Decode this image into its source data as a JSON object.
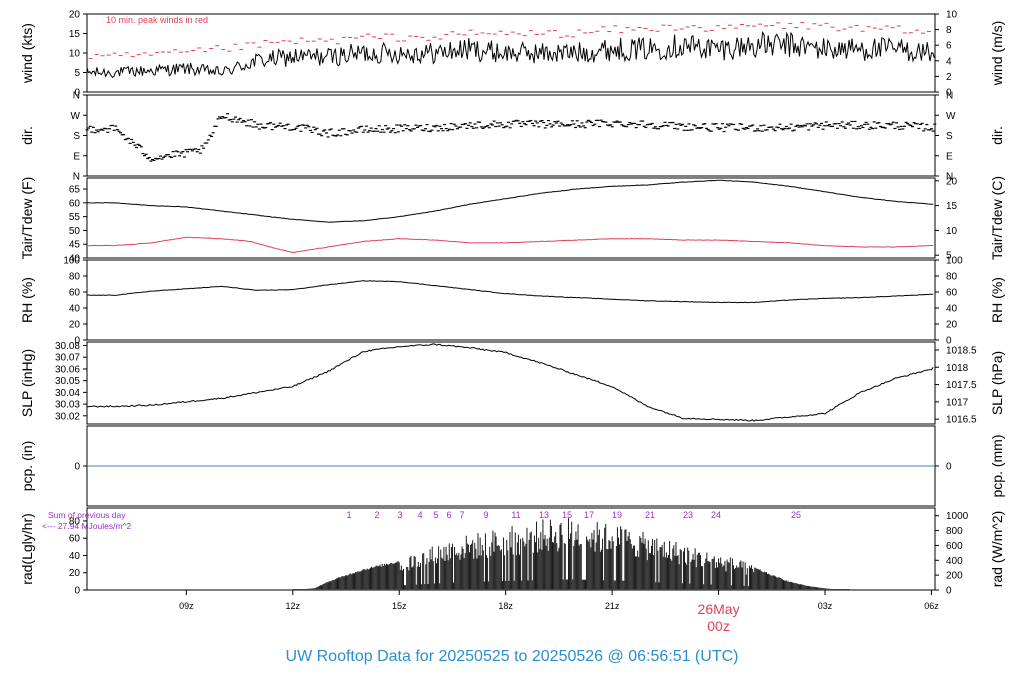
{
  "page_title": "UW Rooftop Data for 20250525  to  20250526 @ 06:56:51  (UTC)",
  "colors": {
    "main": "#000000",
    "peak": "#e0405a",
    "precip": "#4a7fc1",
    "radnote": "#9933cc",
    "title": "#2a8fd0"
  },
  "chart_data": [
    {
      "panel": "wind",
      "type": "line",
      "ylabel": "wind (kts)",
      "ylabel_right": "wind (m/s)",
      "ylim": [
        0,
        20
      ],
      "yticks": [
        0,
        5,
        10,
        15,
        20
      ],
      "right_ylim": [
        0,
        10
      ],
      "right_ticks": [
        0,
        2,
        4,
        6,
        8,
        10
      ],
      "annotation": "10 min. peak winds in red",
      "series": [
        {
          "x": [
            7,
            9,
            10,
            11,
            12,
            13,
            14,
            15,
            16,
            17,
            18,
            19,
            20,
            21,
            22,
            23,
            24,
            25,
            26,
            27,
            28,
            29,
            30,
            31
          ],
          "values": [
            5,
            6,
            5,
            8,
            9,
            9,
            10,
            10,
            10,
            11,
            10,
            10,
            10,
            11,
            11,
            12,
            11,
            12,
            12,
            11,
            11,
            11,
            10,
            9
          ]
        },
        {
          "x": [
            7,
            9,
            10,
            11,
            12,
            13,
            14,
            15,
            16,
            17,
            18,
            19,
            20,
            21,
            22,
            23,
            24,
            25,
            26,
            27,
            28,
            29,
            30,
            31
          ],
          "values": [
            9,
            10,
            11,
            12,
            13,
            13,
            14,
            14,
            14,
            15,
            15,
            15,
            15,
            16,
            16,
            17,
            16,
            17,
            17,
            17,
            16,
            16,
            15,
            15
          ]
        }
      ]
    },
    {
      "panel": "dir",
      "type": "scatter",
      "ylabel": "dir.",
      "ylabel_right": "dir.",
      "yticks": [
        "N",
        "E",
        "S",
        "W",
        "N"
      ],
      "ylim": [
        0,
        360
      ],
      "series": [
        {
          "x": [
            7,
            8,
            9,
            9.5,
            10,
            10.5,
            11,
            12,
            13,
            14,
            15,
            16,
            17,
            18,
            19,
            20,
            21,
            22,
            23,
            24,
            25,
            26,
            27,
            28,
            29,
            31
          ],
          "values": [
            210,
            80,
            100,
            120,
            270,
            250,
            225,
            220,
            190,
            205,
            210,
            215,
            225,
            230,
            230,
            230,
            235,
            230,
            220,
            215,
            215,
            215,
            225,
            225,
            225,
            205
          ]
        }
      ]
    },
    {
      "panel": "temp",
      "type": "line",
      "ylabel": "Tair/Tdew (F)",
      "ylabel_right": "Tair/Tdew (C)",
      "ylim": [
        40,
        69
      ],
      "yticks": [
        40,
        45,
        50,
        55,
        60,
        65
      ],
      "right_ylim": [
        4.44,
        20.56
      ],
      "right_ticks": [
        5,
        10,
        15,
        20
      ],
      "series": [
        {
          "x": [
            7,
            8,
            9,
            10,
            11,
            12,
            13,
            14,
            15,
            16,
            17,
            18,
            19,
            20,
            21,
            22,
            23,
            24,
            25,
            26,
            27,
            28,
            29,
            30,
            31
          ],
          "values": [
            60,
            59,
            58.5,
            57,
            55.5,
            54,
            53,
            53.5,
            55,
            57,
            59.5,
            61.5,
            63.5,
            65,
            66,
            66.5,
            67.5,
            68.2,
            67.5,
            66,
            64,
            62,
            60.5,
            59.5,
            59
          ]
        },
        {
          "x": [
            7,
            8,
            9,
            10,
            10.8,
            11.5,
            12,
            13,
            14,
            15,
            16,
            17,
            18,
            19,
            20,
            21,
            22,
            23,
            24,
            25,
            26,
            27,
            28,
            29,
            30,
            31
          ],
          "values": [
            44.5,
            45.5,
            47.5,
            47,
            46,
            43.5,
            42,
            44,
            46,
            47,
            46.5,
            45.5,
            45.5,
            46,
            46.5,
            47,
            47,
            46.5,
            46.5,
            46,
            45.5,
            44.5,
            44,
            44,
            44.5,
            45.5
          ]
        }
      ]
    },
    {
      "panel": "rh",
      "type": "line",
      "ylabel": "RH (%)",
      "ylabel_right": "RH (%)",
      "ylim": [
        0,
        100
      ],
      "yticks": [
        0,
        20,
        40,
        60,
        80,
        100
      ],
      "series": [
        {
          "x": [
            7,
            8,
            9,
            10,
            11,
            12,
            13,
            14,
            15,
            16,
            17,
            18,
            19,
            20,
            21,
            22,
            23,
            24,
            25,
            26,
            27,
            28,
            29,
            30,
            31
          ],
          "values": [
            56,
            61,
            64,
            67,
            62,
            63,
            69,
            74,
            73,
            68,
            63,
            58,
            55,
            53,
            51,
            49,
            48,
            47,
            47,
            50,
            52,
            53,
            55,
            57,
            59
          ]
        }
      ]
    },
    {
      "panel": "slp",
      "type": "line",
      "ylabel": "SLP (inHg)",
      "ylabel_right": "SLP (hPa)",
      "ylim": [
        30.013,
        30.083
      ],
      "yticks": [
        30.02,
        30.03,
        30.04,
        30.05,
        30.06,
        30.07,
        30.08
      ],
      "right_ylim": [
        1016.36,
        1018.73
      ],
      "right_ticks": [
        1016.5,
        1017,
        1017.5,
        1018,
        1018.5
      ],
      "series": [
        {
          "x": [
            7,
            8,
            9,
            10,
            11,
            12,
            13,
            14,
            15,
            16,
            17,
            18,
            19,
            20,
            21,
            22,
            23,
            24,
            25,
            26,
            27,
            28,
            29,
            30,
            31
          ],
          "values": [
            30.028,
            30.029,
            30.032,
            30.035,
            30.04,
            30.045,
            30.058,
            30.075,
            30.079,
            30.081,
            30.078,
            30.074,
            30.065,
            30.055,
            30.045,
            30.028,
            30.018,
            30.017,
            30.016,
            30.019,
            30.022,
            30.04,
            30.052,
            30.06,
            30.078
          ]
        }
      ]
    },
    {
      "panel": "pcp",
      "type": "line",
      "ylabel": "pcp. (in)",
      "ylabel_right": "pcp. (mm)",
      "ylim": [
        -1,
        1
      ],
      "yticks": [
        0
      ],
      "right_ticks": [
        0
      ],
      "series": [
        {
          "x": [
            6.2,
            30.1
          ],
          "values": [
            0,
            0
          ]
        }
      ]
    },
    {
      "panel": "rad",
      "type": "bar",
      "ylabel": "rad(Lgly/hr)",
      "ylabel_right": "rad (W/m^2)",
      "ylim": [
        0,
        95
      ],
      "yticks": [
        0,
        20,
        40,
        60,
        80
      ],
      "right_ylim": [
        0,
        1104
      ],
      "right_ticks": [
        0,
        200,
        400,
        600,
        800,
        1000
      ],
      "note_line1": "Sum of previous day",
      "note_line2": "<--- 27.94 MJoules/m^2",
      "sun_marks": [
        "1",
        "2",
        "3",
        "4",
        "5",
        "6",
        "7",
        "9",
        "11",
        "13",
        "15",
        "17",
        "19",
        "21",
        "23",
        "24",
        "25"
      ],
      "series": [
        {
          "x": [
            12,
            12.6,
            13,
            13.5,
            14,
            14.5,
            15,
            15.5,
            16,
            16.5,
            17,
            17.5,
            18,
            18.5,
            19,
            19.5,
            20,
            20.5,
            21,
            21.5,
            22,
            22.5,
            23,
            23.5,
            24,
            24.5,
            25,
            25.5,
            26,
            26.5,
            27,
            27.5
          ],
          "values": [
            0,
            2,
            10,
            18,
            25,
            30,
            35,
            42,
            50,
            57,
            62,
            66,
            70,
            73,
            78,
            80,
            82,
            76,
            74,
            70,
            62,
            58,
            52,
            45,
            40,
            35,
            27,
            18,
            10,
            5,
            2,
            0
          ]
        }
      ]
    }
  ],
  "x_axis": {
    "ticks": [
      "09z",
      "12z",
      "15z",
      "18z",
      "21z",
      "00z",
      "03z",
      "06z"
    ],
    "date_label": "26May",
    "date_tick": "00z"
  }
}
